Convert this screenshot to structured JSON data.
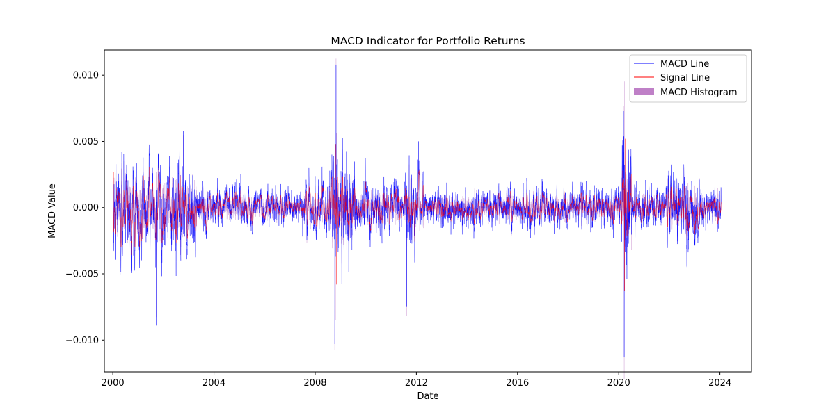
{
  "chart_data": {
    "type": "line",
    "title": "MACD Indicator for Portfolio Returns",
    "xlabel": "Date",
    "ylabel": "MACD Value",
    "x_range": [
      "1999-09-01",
      "2025-04-01"
    ],
    "ylim": [
      -0.0124,
      0.0119
    ],
    "x_ticks": [
      "2000",
      "2004",
      "2008",
      "2012",
      "2016",
      "2020",
      "2024"
    ],
    "y_ticks": [
      "0.010",
      "0.005",
      "0.000",
      "−0.005",
      "−0.010"
    ],
    "y_tick_values": [
      0.01,
      0.005,
      0.0,
      -0.005,
      -0.01
    ],
    "x_tick_values": [
      2000,
      2004,
      2008,
      2012,
      2016,
      2020,
      2024
    ],
    "legend_position": "top-right",
    "grid": false,
    "series": [
      {
        "name": "MACD Line",
        "color": "#0000ff",
        "notable_points": [
          {
            "date": "2000-01-06",
            "value": -0.0084
          },
          {
            "date": "2001-09-20",
            "value": -0.0089
          },
          {
            "date": "2001-09-28",
            "value": 0.0065
          },
          {
            "date": "2002-10-15",
            "value": 0.0058
          },
          {
            "date": "2008-10-10",
            "value": -0.0103
          },
          {
            "date": "2008-10-28",
            "value": 0.0108
          },
          {
            "date": "2011-08-15",
            "value": -0.0075
          },
          {
            "date": "2020-03-10",
            "value": 0.0073
          },
          {
            "date": "2020-03-20",
            "value": -0.0113
          },
          {
            "date": "2024-01-15",
            "value": 0.0004
          }
        ]
      },
      {
        "name": "Signal Line",
        "color": "#ff0000",
        "notable_points": [
          {
            "date": "2000-01-10",
            "value": 0.0027
          },
          {
            "date": "2008-10-20",
            "value": 0.0048
          },
          {
            "date": "2008-11-05",
            "value": -0.0058
          },
          {
            "date": "2020-04-01",
            "value": 0.0052
          },
          {
            "date": "2020-03-25",
            "value": -0.0063
          }
        ]
      },
      {
        "name": "MACD Histogram",
        "color": "#bf80c7"
      }
    ]
  }
}
